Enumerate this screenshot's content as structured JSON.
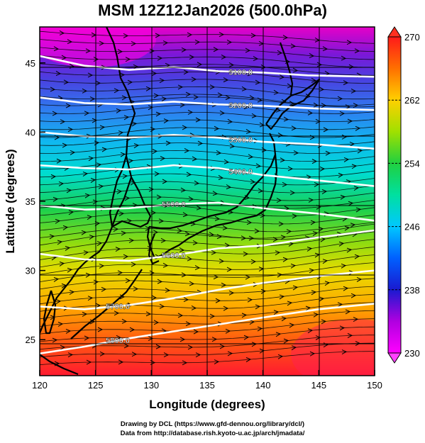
{
  "title": "MSM 12Z12Jan2026 (500.0hPa)",
  "xlabel": "Longitude (degrees)",
  "ylabel": "Latitude  (degrees)",
  "credits": {
    "line1": "Drawing by DCL (https://www.gfd-dennou.org/library/dcl/)",
    "line2": "Data from http://database.rish.kyoto-u.ac.jp/arch/jmadata/"
  },
  "colors": {
    "land": "#000000",
    "contour": "#ffffff",
    "streamline": "#000000",
    "gridline": "#000000"
  },
  "chart_data": {
    "type": "heatmap",
    "variable_colorbar": "temperature",
    "colorbar": {
      "min": 230,
      "max": 270,
      "ticks": [
        230,
        238,
        246,
        254,
        262,
        270
      ],
      "stops": [
        "#ff00ff",
        "#8a00c8",
        "#1a1ad0",
        "#00a0ff",
        "#00e0e0",
        "#20d040",
        "#c8e000",
        "#ffd000",
        "#ff7000",
        "#ff1a1a"
      ]
    },
    "xlim": [
      120,
      150
    ],
    "ylim": [
      22.4,
      47.6
    ],
    "xticks": [
      120,
      125,
      130,
      135,
      140,
      145,
      150
    ],
    "yticks": [
      25,
      30,
      35,
      40,
      45
    ],
    "contours": [
      {
        "label": "5100.0",
        "points": [
          [
            120,
            45.5
          ],
          [
            124,
            44.8
          ],
          [
            128,
            44.5
          ],
          [
            132,
            44.7
          ],
          [
            136,
            44.4
          ],
          [
            140,
            44.3
          ],
          [
            144,
            44.1
          ],
          [
            150,
            44.0
          ]
        ]
      },
      {
        "label": "5200.0",
        "points": [
          [
            120,
            42.5
          ],
          [
            124,
            42.1
          ],
          [
            128,
            42.0
          ],
          [
            132,
            42.2
          ],
          [
            136,
            42.0
          ],
          [
            140,
            41.9
          ],
          [
            145,
            41.7
          ],
          [
            150,
            41.6
          ]
        ]
      },
      {
        "label": "5300.0",
        "points": [
          [
            120,
            40.0
          ],
          [
            124,
            39.7
          ],
          [
            128,
            39.6
          ],
          [
            132,
            39.8
          ],
          [
            136,
            39.6
          ],
          [
            140,
            39.3
          ],
          [
            145,
            39.1
          ],
          [
            150,
            38.8
          ]
        ]
      },
      {
        "label": "5400.0",
        "points": [
          [
            120,
            37.6
          ],
          [
            124,
            37.4
          ],
          [
            128,
            37.3
          ],
          [
            132,
            37.6
          ],
          [
            136,
            37.4
          ],
          [
            140,
            36.9
          ],
          [
            145,
            36.5
          ],
          [
            150,
            36.1
          ]
        ]
      },
      {
        "label": "5500.0",
        "points": [
          [
            120,
            34.7
          ],
          [
            124,
            34.4
          ],
          [
            128,
            34.5
          ],
          [
            132,
            34.8
          ],
          [
            136,
            34.9
          ],
          [
            140,
            34.5
          ],
          [
            145,
            34.1
          ],
          [
            150,
            33.6
          ]
        ]
      },
      {
        "label": "5600.0",
        "points": [
          [
            120,
            31.2
          ],
          [
            124,
            30.8
          ],
          [
            128,
            30.7
          ],
          [
            132,
            31.1
          ],
          [
            136,
            31.6
          ],
          [
            140,
            31.8
          ],
          [
            145,
            32.4
          ],
          [
            150,
            32.9
          ]
        ]
      },
      {
        "label": "5700.0",
        "points": [
          [
            120,
            27.4
          ],
          [
            124,
            27.2
          ],
          [
            128,
            27.5
          ],
          [
            132,
            28.0
          ],
          [
            136,
            28.6
          ],
          [
            140,
            29.1
          ],
          [
            145,
            29.6
          ],
          [
            150,
            30.0
          ]
        ]
      },
      {
        "label": "5800.0",
        "points": [
          [
            120,
            24.0
          ],
          [
            124,
            24.5
          ],
          [
            128,
            25.1
          ],
          [
            132,
            25.6
          ],
          [
            136,
            26.1
          ],
          [
            140,
            26.6
          ],
          [
            145,
            27.2
          ],
          [
            150,
            27.6
          ]
        ]
      }
    ]
  }
}
